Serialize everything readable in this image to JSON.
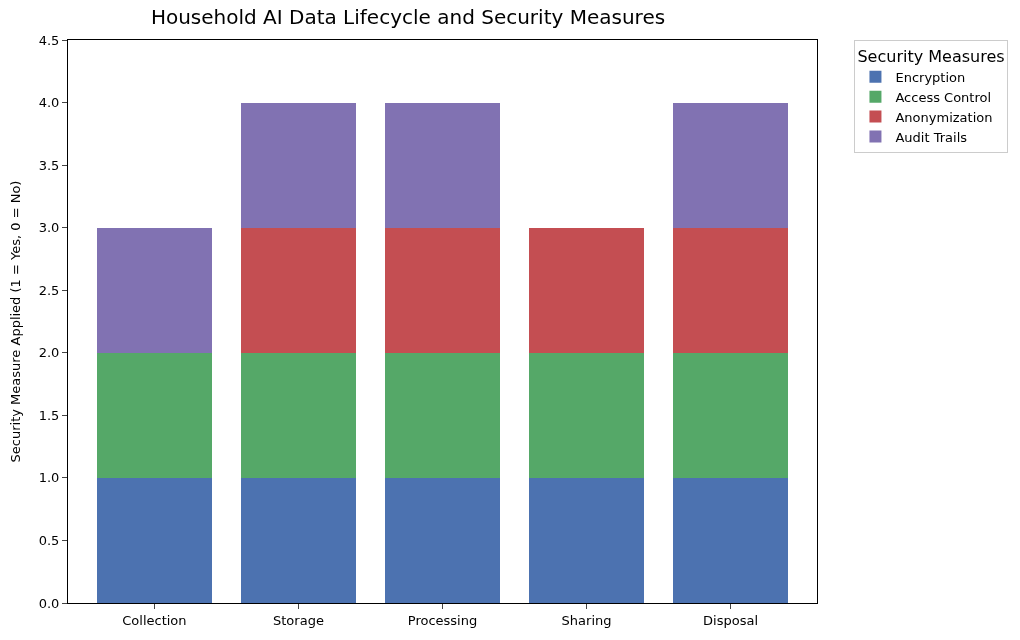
{
  "chart_data": {
    "type": "bar",
    "title": "Household AI Data Lifecycle and Security Measures",
    "ylabel": "Security Measure Applied (1 = Yes, 0 = No)",
    "legend_title": "Security Measures",
    "categories": [
      "Collection",
      "Storage",
      "Processing",
      "Sharing",
      "Disposal"
    ],
    "series": [
      {
        "name": "Encryption",
        "color": "#4c72b0",
        "values": [
          1,
          1,
          1,
          1,
          1
        ]
      },
      {
        "name": "Access Control",
        "color": "#55a868",
        "values": [
          1,
          1,
          1,
          1,
          1
        ]
      },
      {
        "name": "Anonymization",
        "color": "#c44e52",
        "values": [
          0,
          1,
          1,
          1,
          1
        ]
      },
      {
        "name": "Audit Trails",
        "color": "#8172b2",
        "values": [
          1,
          1,
          1,
          0,
          1
        ]
      }
    ],
    "stacked": true,
    "ylim": [
      0,
      4.5
    ],
    "yticks": [
      {
        "value": 0,
        "label": "0.0"
      },
      {
        "value": 0.5,
        "label": "0.5"
      },
      {
        "value": 1,
        "label": "1.0"
      },
      {
        "value": 1.5,
        "label": "1.5"
      },
      {
        "value": 2,
        "label": "2.0"
      },
      {
        "value": 2.5,
        "label": "2.5"
      },
      {
        "value": 3,
        "label": "3.0"
      },
      {
        "value": 3.5,
        "label": "3.5"
      },
      {
        "value": 4,
        "label": "4.0"
      },
      {
        "value": 4.5,
        "label": "4.5"
      }
    ],
    "legend": "top right"
  }
}
